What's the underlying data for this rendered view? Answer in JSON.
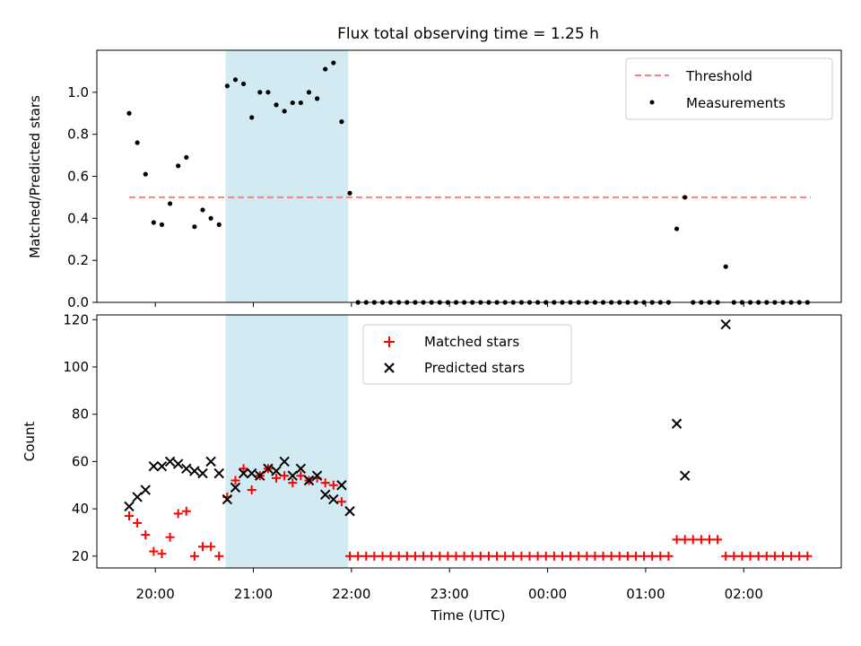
{
  "title": "Flux total observing time = 1.25 h",
  "chart_data": [
    {
      "type": "scatter",
      "ylabel": "Matched/Predicted stars",
      "ylim": [
        0,
        1.2
      ],
      "yticks": [
        0.0,
        0.2,
        0.4,
        0.6,
        0.8,
        1.0
      ],
      "ytick_labels": [
        "0.0",
        "0.2",
        "0.4",
        "0.6",
        "0.8",
        "1.0"
      ],
      "legend": {
        "placement": "top-right",
        "entries": [
          "Threshold",
          "Measurements"
        ]
      },
      "threshold": {
        "name": "Threshold",
        "value": 0.5,
        "x_start": "19:44",
        "x_end": "02:41",
        "color": "#ff7f7f",
        "style": "dashed"
      },
      "shaded_interval": {
        "start": "20:43",
        "end": "21:58",
        "color": "#add8e6"
      },
      "series": [
        {
          "name": "Measurements",
          "marker": "dot",
          "color": "#000000",
          "x": [
            "19:44",
            "19:49",
            "19:54",
            "19:59",
            "20:04",
            "20:09",
            "20:14",
            "20:19",
            "20:24",
            "20:29",
            "20:34",
            "20:39",
            "20:44",
            "20:49",
            "20:54",
            "20:59",
            "21:04",
            "21:09",
            "21:14",
            "21:19",
            "21:24",
            "21:29",
            "21:34",
            "21:39",
            "21:44",
            "21:49",
            "21:54",
            "21:59",
            "22:04",
            "22:09",
            "22:14",
            "22:19",
            "22:24",
            "22:29",
            "22:34",
            "22:39",
            "22:44",
            "22:49",
            "22:54",
            "22:59",
            "23:04",
            "23:09",
            "23:14",
            "23:19",
            "23:24",
            "23:29",
            "23:34",
            "23:39",
            "23:44",
            "23:49",
            "23:54",
            "23:59",
            "00:04",
            "00:09",
            "00:14",
            "00:19",
            "00:24",
            "00:29",
            "00:34",
            "00:39",
            "00:44",
            "00:49",
            "00:54",
            "00:59",
            "01:04",
            "01:09",
            "01:14",
            "01:19",
            "01:24",
            "01:29",
            "01:34",
            "01:39",
            "01:44",
            "01:49",
            "01:54",
            "01:59",
            "02:04",
            "02:09",
            "02:14",
            "02:19",
            "02:24",
            "02:29",
            "02:34",
            "02:39"
          ],
          "y": [
            0.9,
            0.76,
            0.61,
            0.38,
            0.37,
            0.47,
            0.65,
            0.69,
            0.36,
            0.44,
            0.4,
            0.37,
            1.03,
            1.06,
            1.04,
            0.88,
            1.0,
            1.0,
            0.94,
            0.91,
            0.95,
            0.95,
            1.0,
            0.97,
            1.11,
            1.14,
            0.86,
            0.52,
            0,
            0,
            0,
            0,
            0,
            0,
            0,
            0,
            0,
            0,
            0,
            0,
            0,
            0,
            0,
            0,
            0,
            0,
            0,
            0,
            0,
            0,
            0,
            0,
            0,
            0,
            0,
            0,
            0,
            0,
            0,
            0,
            0,
            0,
            0,
            0,
            0,
            0,
            0,
            0.35,
            0.5,
            0,
            0,
            0,
            0,
            0.17,
            0,
            0,
            0,
            0,
            0,
            0,
            0,
            0,
            0,
            0
          ]
        }
      ]
    },
    {
      "type": "scatter",
      "title": "Flux total observing time = 1.25 h",
      "xlabel": "Time (UTC)",
      "ylabel": "Count",
      "ylim": [
        15,
        122
      ],
      "yticks": [
        20,
        40,
        60,
        80,
        100,
        120
      ],
      "ytick_labels": [
        "20",
        "40",
        "60",
        "80",
        "100",
        "120"
      ],
      "x_ticks": [
        "20:00",
        "21:00",
        "22:00",
        "23:00",
        "00:00",
        "01:00",
        "02:00"
      ],
      "legend": {
        "placement": "top-center",
        "entries": [
          "Matched stars",
          "Predicted stars"
        ]
      },
      "shaded_interval": {
        "start": "20:43",
        "end": "21:58",
        "color": "#add8e6"
      },
      "series": [
        {
          "name": "Matched stars",
          "marker": "plus",
          "color": "#ff0000",
          "x": [
            "19:44",
            "19:49",
            "19:54",
            "19:59",
            "20:04",
            "20:09",
            "20:14",
            "20:19",
            "20:24",
            "20:29",
            "20:34",
            "20:39",
            "20:44",
            "20:49",
            "20:54",
            "20:59",
            "21:04",
            "21:09",
            "21:14",
            "21:19",
            "21:24",
            "21:29",
            "21:34",
            "21:39",
            "21:44",
            "21:49",
            "21:54",
            "21:59",
            "22:04",
            "22:09",
            "22:14",
            "22:19",
            "22:24",
            "22:29",
            "22:34",
            "22:39",
            "22:44",
            "22:49",
            "22:54",
            "22:59",
            "23:04",
            "23:09",
            "23:14",
            "23:19",
            "23:24",
            "23:29",
            "23:34",
            "23:39",
            "23:44",
            "23:49",
            "23:54",
            "23:59",
            "00:04",
            "00:09",
            "00:14",
            "00:19",
            "00:24",
            "00:29",
            "00:34",
            "00:39",
            "00:44",
            "00:49",
            "00:54",
            "00:59",
            "01:04",
            "01:09",
            "01:14",
            "01:19",
            "01:24",
            "01:29",
            "01:34",
            "01:39",
            "01:44",
            "01:49",
            "01:54",
            "01:59",
            "02:04",
            "02:09",
            "02:14",
            "02:19",
            "02:24",
            "02:29",
            "02:34",
            "02:39"
          ],
          "y": [
            37,
            34,
            29,
            22,
            21,
            28,
            38,
            39,
            20,
            24,
            24,
            20,
            45,
            52,
            57,
            48,
            54,
            57,
            53,
            54,
            51,
            54,
            52,
            53,
            51,
            50,
            43,
            20,
            20,
            20,
            20,
            20,
            20,
            20,
            20,
            20,
            20,
            20,
            20,
            20,
            20,
            20,
            20,
            20,
            20,
            20,
            20,
            20,
            20,
            20,
            20,
            20,
            20,
            20,
            20,
            20,
            20,
            20,
            20,
            20,
            20,
            20,
            20,
            20,
            20,
            20,
            20,
            27,
            27,
            27,
            27,
            27,
            27,
            20,
            20,
            20,
            20,
            20,
            20,
            20,
            20,
            20,
            20,
            20
          ]
        },
        {
          "name": "Predicted stars",
          "marker": "x",
          "color": "#000000",
          "x": [
            "19:44",
            "19:49",
            "19:54",
            "19:59",
            "20:04",
            "20:09",
            "20:14",
            "20:19",
            "20:24",
            "20:29",
            "20:34",
            "20:39",
            "20:44",
            "20:49",
            "20:54",
            "20:59",
            "21:04",
            "21:09",
            "21:14",
            "21:19",
            "21:24",
            "21:29",
            "21:34",
            "21:39",
            "21:44",
            "21:49",
            "21:54",
            "21:59",
            "01:19",
            "01:24",
            "01:49"
          ],
          "y": [
            41,
            45,
            48,
            58,
            58,
            60,
            59,
            57,
            56,
            55,
            60,
            55,
            44,
            49,
            55,
            55,
            54,
            57,
            56,
            60,
            54,
            57,
            52,
            54,
            46,
            44,
            50,
            39,
            76,
            54,
            118
          ]
        }
      ]
    }
  ]
}
